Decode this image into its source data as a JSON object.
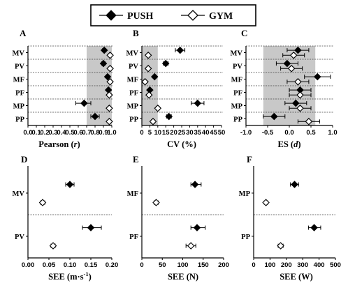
{
  "legend": {
    "items": [
      {
        "label": "PUSH",
        "marker": "filled-diamond"
      },
      {
        "label": "GYM",
        "marker": "open-diamond"
      }
    ]
  },
  "colors": {
    "shade": "#c8c8c8",
    "marker": "#000000"
  },
  "chart_data": [
    {
      "panel": "A",
      "type": "scatter",
      "orientation": "horizontal",
      "xlabel_main": "Pearson (",
      "xlabel_italic": "r",
      "xlabel_end": ")",
      "xlim": [
        0.0,
        1.0
      ],
      "xticks": [
        "0.0",
        "0.1",
        "0.2",
        "0.3",
        "0.4",
        "0.5",
        "0.6",
        "0.7",
        "0.8",
        "0.9",
        "1.0"
      ],
      "shaded_range": [
        0.7,
        1.0
      ],
      "categories": [
        "MV",
        "PV",
        "MF",
        "PF",
        "MP",
        "PP"
      ],
      "series": [
        {
          "name": "PUSH",
          "marker": "filled",
          "values": [
            0.91,
            0.9,
            0.95,
            0.96,
            0.67,
            0.8
          ],
          "err_low": [
            0.02,
            0.02,
            0.01,
            0.01,
            0.1,
            0.05
          ],
          "err_high": [
            0.02,
            0.02,
            0.01,
            0.01,
            0.08,
            0.05
          ]
        },
        {
          "name": "GYM",
          "marker": "open",
          "values": [
            0.98,
            0.98,
            0.98,
            0.97,
            0.97,
            0.97
          ],
          "err_low": [
            0.005,
            0.005,
            0.005,
            0.005,
            0.005,
            0.005
          ],
          "err_high": [
            0.005,
            0.005,
            0.005,
            0.005,
            0.005,
            0.005
          ]
        }
      ]
    },
    {
      "panel": "B",
      "type": "scatter",
      "orientation": "horizontal",
      "xlabel_main": "CV (%)",
      "xlabel_italic": "",
      "xlabel_end": "",
      "xlim": [
        0,
        50
      ],
      "xticks": [
        "0",
        "5",
        "10",
        "15",
        "20",
        "25",
        "30",
        "35",
        "40",
        "45",
        "50"
      ],
      "shaded_range": [
        0,
        10
      ],
      "categories": [
        "MV",
        "PV",
        "MF",
        "PF",
        "MP",
        "PP"
      ],
      "series": [
        {
          "name": "PUSH",
          "marker": "filled",
          "values": [
            24,
            15,
            8,
            5,
            35,
            17
          ],
          "err_low": [
            3,
            1.5,
            0.8,
            0.5,
            4,
            1.5
          ],
          "err_high": [
            3,
            1.5,
            0.8,
            0.5,
            4,
            1.5
          ]
        },
        {
          "name": "GYM",
          "marker": "open",
          "values": [
            4,
            4,
            2,
            4.5,
            10,
            7
          ],
          "err_low": [
            0.8,
            0.8,
            0.5,
            0.8,
            1,
            1
          ],
          "err_high": [
            0.8,
            0.8,
            0.5,
            0.8,
            1,
            1
          ]
        }
      ]
    },
    {
      "panel": "C",
      "type": "scatter",
      "orientation": "horizontal",
      "xlabel_main": "ES (",
      "xlabel_italic": "d",
      "xlabel_end": ")",
      "xlim": [
        -1.0,
        1.0
      ],
      "xticks": [
        "-1.0",
        "-0.5",
        "0.0",
        "0.5",
        "1.0"
      ],
      "shaded_range": [
        -0.6,
        0.6
      ],
      "categories": [
        "MV",
        "PV",
        "MF",
        "PF",
        "MP",
        "PP"
      ],
      "series": [
        {
          "name": "PUSH",
          "marker": "filled",
          "values": [
            0.2,
            -0.05,
            0.65,
            0.25,
            0.15,
            -0.35
          ],
          "err_low": [
            0.25,
            0.25,
            0.3,
            0.25,
            0.25,
            0.25
          ],
          "err_high": [
            0.25,
            0.25,
            0.3,
            0.25,
            0.25,
            0.25
          ]
        },
        {
          "name": "GYM",
          "marker": "open",
          "values": [
            0.1,
            0.05,
            0.2,
            0.25,
            0.25,
            0.45
          ],
          "err_low": [
            0.25,
            0.25,
            0.25,
            0.25,
            0.25,
            0.25
          ],
          "err_high": [
            0.25,
            0.25,
            0.25,
            0.25,
            0.25,
            0.25
          ]
        }
      ]
    },
    {
      "panel": "D",
      "type": "scatter",
      "orientation": "horizontal",
      "xlabel_main": "SEE (m·s",
      "xlabel_italic": "",
      "xlabel_sup": "-1",
      "xlabel_end": ")",
      "xlim": [
        0,
        0.2
      ],
      "xticks": [
        "0.00",
        "0.05",
        "0.10",
        "0.15",
        "0.20"
      ],
      "categories": [
        "MV",
        "PV"
      ],
      "series": [
        {
          "name": "PUSH",
          "marker": "filled",
          "values": [
            0.1,
            0.15
          ],
          "err_low": [
            0.01,
            0.02
          ],
          "err_high": [
            0.01,
            0.025
          ]
        },
        {
          "name": "GYM",
          "marker": "open",
          "values": [
            0.035,
            0.06
          ],
          "err_low": [
            0.005,
            0.005
          ],
          "err_high": [
            0.005,
            0.005
          ]
        }
      ]
    },
    {
      "panel": "E",
      "type": "scatter",
      "orientation": "horizontal",
      "xlabel_main": "SEE (N)",
      "xlabel_italic": "",
      "xlabel_end": "",
      "xlim": [
        0,
        200
      ],
      "xticks": [
        "0",
        "50",
        "100",
        "150",
        "200"
      ],
      "categories": [
        "MF",
        "PF"
      ],
      "series": [
        {
          "name": "PUSH",
          "marker": "filled",
          "values": [
            130,
            135
          ],
          "err_low": [
            10,
            15
          ],
          "err_high": [
            15,
            20
          ]
        },
        {
          "name": "GYM",
          "marker": "open",
          "values": [
            35,
            120
          ],
          "err_low": [
            5,
            12
          ],
          "err_high": [
            5,
            12
          ]
        }
      ]
    },
    {
      "panel": "F",
      "type": "scatter",
      "orientation": "horizontal",
      "xlabel_main": "SEE (W)",
      "xlabel_italic": "",
      "xlabel_end": "",
      "xlim": [
        0,
        500
      ],
      "xticks": [
        "0",
        "100",
        "200",
        "300",
        "400",
        "500"
      ],
      "categories": [
        "MP",
        "PP"
      ],
      "series": [
        {
          "name": "PUSH",
          "marker": "filled",
          "values": [
            250,
            370
          ],
          "err_low": [
            25,
            35
          ],
          "err_high": [
            25,
            40
          ]
        },
        {
          "name": "GYM",
          "marker": "open",
          "values": [
            75,
            165
          ],
          "err_low": [
            10,
            15
          ],
          "err_high": [
            10,
            15
          ]
        }
      ]
    }
  ]
}
